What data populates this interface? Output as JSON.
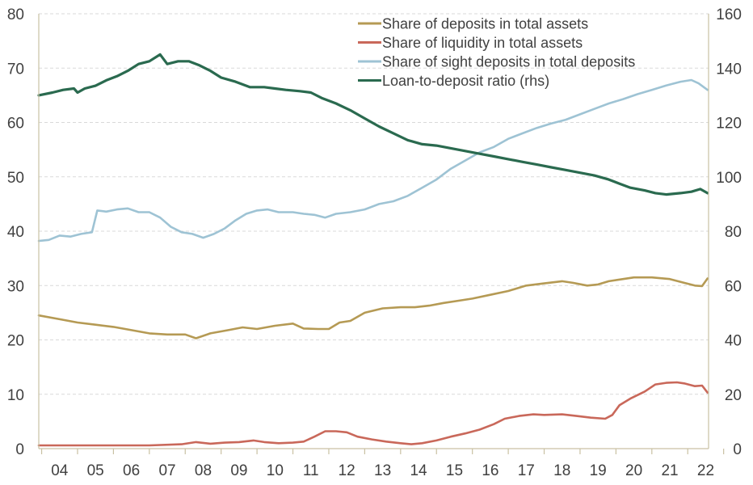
{
  "chart_data": {
    "type": "line",
    "x_tick_labels": [
      "04",
      "05",
      "06",
      "07",
      "08",
      "09",
      "10",
      "11",
      "12",
      "13",
      "14",
      "15",
      "16",
      "17",
      "18",
      "19",
      "20",
      "21",
      "22"
    ],
    "y_left": {
      "min": 0,
      "max": 80,
      "ticks": [
        "0",
        "10",
        "20",
        "30",
        "40",
        "50",
        "60",
        "70",
        "80"
      ]
    },
    "y_right": {
      "min": 0,
      "max": 160,
      "ticks": [
        "0",
        "20",
        "40",
        "60",
        "80",
        "100",
        "120",
        "140",
        "160"
      ]
    },
    "grid": "horizontal dashed",
    "legend_position": "top-right",
    "series": [
      {
        "name": "Share of deposits in total assets",
        "axis": "left",
        "color": "#b59a54",
        "points": [
          [
            2003.92,
            24.5
          ],
          [
            2004.5,
            23.8
          ],
          [
            2005.0,
            23.2
          ],
          [
            2005.5,
            22.8
          ],
          [
            2006.0,
            22.4
          ],
          [
            2006.5,
            21.8
          ],
          [
            2007.0,
            21.2
          ],
          [
            2007.5,
            21.0
          ],
          [
            2008.0,
            21.0
          ],
          [
            2008.3,
            20.3
          ],
          [
            2008.7,
            21.2
          ],
          [
            2009.2,
            21.8
          ],
          [
            2009.6,
            22.3
          ],
          [
            2010.0,
            22.0
          ],
          [
            2010.5,
            22.6
          ],
          [
            2011.0,
            23.0
          ],
          [
            2011.3,
            22.1
          ],
          [
            2011.7,
            22.0
          ],
          [
            2012.0,
            22.0
          ],
          [
            2012.3,
            23.2
          ],
          [
            2012.6,
            23.5
          ],
          [
            2013.0,
            25.0
          ],
          [
            2013.5,
            25.8
          ],
          [
            2014.0,
            26.0
          ],
          [
            2014.4,
            26.0
          ],
          [
            2014.8,
            26.3
          ],
          [
            2015.2,
            26.8
          ],
          [
            2015.6,
            27.2
          ],
          [
            2016.0,
            27.6
          ],
          [
            2016.5,
            28.3
          ],
          [
            2017.0,
            29.0
          ],
          [
            2017.5,
            30.0
          ],
          [
            2018.0,
            30.4
          ],
          [
            2018.5,
            30.8
          ],
          [
            2018.8,
            30.5
          ],
          [
            2019.2,
            30.0
          ],
          [
            2019.5,
            30.2
          ],
          [
            2019.8,
            30.8
          ],
          [
            2020.2,
            31.2
          ],
          [
            2020.5,
            31.5
          ],
          [
            2021.0,
            31.5
          ],
          [
            2021.5,
            31.2
          ],
          [
            2021.9,
            30.5
          ],
          [
            2022.2,
            30.0
          ],
          [
            2022.4,
            29.9
          ],
          [
            2022.55,
            31.3
          ]
        ]
      },
      {
        "name": "Share of liquidity in total assets",
        "axis": "left",
        "color": "#c9685a",
        "points": [
          [
            2003.92,
            0.6
          ],
          [
            2005.0,
            0.6
          ],
          [
            2006.0,
            0.6
          ],
          [
            2007.0,
            0.6
          ],
          [
            2007.9,
            0.8
          ],
          [
            2008.3,
            1.2
          ],
          [
            2008.7,
            0.9
          ],
          [
            2009.1,
            1.1
          ],
          [
            2009.5,
            1.2
          ],
          [
            2009.9,
            1.5
          ],
          [
            2010.2,
            1.2
          ],
          [
            2010.6,
            1.0
          ],
          [
            2011.0,
            1.1
          ],
          [
            2011.3,
            1.3
          ],
          [
            2011.6,
            2.2
          ],
          [
            2011.9,
            3.2
          ],
          [
            2012.2,
            3.2
          ],
          [
            2012.5,
            3.0
          ],
          [
            2012.8,
            2.2
          ],
          [
            2013.2,
            1.7
          ],
          [
            2013.6,
            1.3
          ],
          [
            2014.0,
            1.0
          ],
          [
            2014.3,
            0.8
          ],
          [
            2014.6,
            1.0
          ],
          [
            2015.0,
            1.5
          ],
          [
            2015.4,
            2.2
          ],
          [
            2015.8,
            2.8
          ],
          [
            2016.2,
            3.5
          ],
          [
            2016.6,
            4.5
          ],
          [
            2016.9,
            5.5
          ],
          [
            2017.3,
            6.0
          ],
          [
            2017.7,
            6.3
          ],
          [
            2018.0,
            6.2
          ],
          [
            2018.5,
            6.3
          ],
          [
            2018.9,
            6.0
          ],
          [
            2019.3,
            5.7
          ],
          [
            2019.7,
            5.5
          ],
          [
            2019.9,
            6.2
          ],
          [
            2020.1,
            8.0
          ],
          [
            2020.4,
            9.2
          ],
          [
            2020.8,
            10.5
          ],
          [
            2021.1,
            11.8
          ],
          [
            2021.4,
            12.1
          ],
          [
            2021.7,
            12.2
          ],
          [
            2021.9,
            12.0
          ],
          [
            2022.2,
            11.5
          ],
          [
            2022.4,
            11.6
          ],
          [
            2022.55,
            10.3
          ]
        ]
      },
      {
        "name": "Share of sight deposits in total deposits",
        "axis": "left",
        "color": "#9ec3d4",
        "points": [
          [
            2003.92,
            38.2
          ],
          [
            2004.2,
            38.4
          ],
          [
            2004.5,
            39.2
          ],
          [
            2004.8,
            39.0
          ],
          [
            2005.1,
            39.5
          ],
          [
            2005.4,
            39.8
          ],
          [
            2005.55,
            43.8
          ],
          [
            2005.8,
            43.6
          ],
          [
            2006.1,
            44.0
          ],
          [
            2006.4,
            44.2
          ],
          [
            2006.7,
            43.5
          ],
          [
            2007.0,
            43.5
          ],
          [
            2007.3,
            42.5
          ],
          [
            2007.6,
            40.8
          ],
          [
            2007.9,
            39.8
          ],
          [
            2008.2,
            39.5
          ],
          [
            2008.5,
            38.8
          ],
          [
            2008.8,
            39.5
          ],
          [
            2009.1,
            40.5
          ],
          [
            2009.4,
            42.0
          ],
          [
            2009.7,
            43.2
          ],
          [
            2010.0,
            43.8
          ],
          [
            2010.3,
            44.0
          ],
          [
            2010.6,
            43.5
          ],
          [
            2011.0,
            43.5
          ],
          [
            2011.3,
            43.2
          ],
          [
            2011.6,
            43.0
          ],
          [
            2011.9,
            42.5
          ],
          [
            2012.2,
            43.2
          ],
          [
            2012.6,
            43.5
          ],
          [
            2013.0,
            44.0
          ],
          [
            2013.4,
            45.0
          ],
          [
            2013.8,
            45.5
          ],
          [
            2014.2,
            46.5
          ],
          [
            2014.6,
            48.0
          ],
          [
            2015.0,
            49.5
          ],
          [
            2015.4,
            51.5
          ],
          [
            2015.8,
            53.0
          ],
          [
            2016.2,
            54.5
          ],
          [
            2016.6,
            55.5
          ],
          [
            2017.0,
            57.0
          ],
          [
            2017.4,
            58.0
          ],
          [
            2017.8,
            59.0
          ],
          [
            2018.2,
            59.8
          ],
          [
            2018.6,
            60.5
          ],
          [
            2019.0,
            61.5
          ],
          [
            2019.4,
            62.5
          ],
          [
            2019.8,
            63.5
          ],
          [
            2020.2,
            64.3
          ],
          [
            2020.6,
            65.2
          ],
          [
            2021.0,
            66.0
          ],
          [
            2021.4,
            66.8
          ],
          [
            2021.8,
            67.5
          ],
          [
            2022.1,
            67.8
          ],
          [
            2022.3,
            67.2
          ],
          [
            2022.55,
            66.0
          ]
        ]
      },
      {
        "name": "Loan-to-deposit ratio (rhs)",
        "axis": "right",
        "color": "#2a6a4f",
        "points": [
          [
            2003.92,
            130.0
          ],
          [
            2004.3,
            131.0
          ],
          [
            2004.6,
            132.0
          ],
          [
            2004.9,
            132.5
          ],
          [
            2005.0,
            131.0
          ],
          [
            2005.2,
            132.5
          ],
          [
            2005.5,
            133.5
          ],
          [
            2005.8,
            135.5
          ],
          [
            2006.1,
            137.0
          ],
          [
            2006.4,
            139.0
          ],
          [
            2006.7,
            141.5
          ],
          [
            2007.0,
            142.5
          ],
          [
            2007.3,
            145.0
          ],
          [
            2007.5,
            141.5
          ],
          [
            2007.8,
            142.5
          ],
          [
            2008.1,
            142.5
          ],
          [
            2008.4,
            141.0
          ],
          [
            2008.7,
            139.0
          ],
          [
            2009.0,
            136.5
          ],
          [
            2009.4,
            135.0
          ],
          [
            2009.8,
            133.0
          ],
          [
            2010.2,
            133.0
          ],
          [
            2010.5,
            132.5
          ],
          [
            2010.8,
            132.0
          ],
          [
            2011.2,
            131.5
          ],
          [
            2011.5,
            131.0
          ],
          [
            2011.8,
            129.0
          ],
          [
            2012.2,
            127.0
          ],
          [
            2012.6,
            124.5
          ],
          [
            2013.0,
            121.5
          ],
          [
            2013.4,
            118.5
          ],
          [
            2013.8,
            116.0
          ],
          [
            2014.2,
            113.5
          ],
          [
            2014.6,
            112.0
          ],
          [
            2015.0,
            111.5
          ],
          [
            2015.4,
            110.5
          ],
          [
            2015.8,
            109.5
          ],
          [
            2016.2,
            108.5
          ],
          [
            2016.6,
            107.5
          ],
          [
            2017.0,
            106.5
          ],
          [
            2017.4,
            105.5
          ],
          [
            2017.8,
            104.5
          ],
          [
            2018.2,
            103.5
          ],
          [
            2018.6,
            102.5
          ],
          [
            2019.0,
            101.5
          ],
          [
            2019.4,
            100.5
          ],
          [
            2019.8,
            99.0
          ],
          [
            2020.1,
            97.5
          ],
          [
            2020.4,
            96.0
          ],
          [
            2020.8,
            95.0
          ],
          [
            2021.1,
            94.0
          ],
          [
            2021.4,
            93.5
          ],
          [
            2021.8,
            94.0
          ],
          [
            2022.1,
            94.5
          ],
          [
            2022.35,
            95.5
          ],
          [
            2022.55,
            94.0
          ]
        ]
      }
    ]
  }
}
